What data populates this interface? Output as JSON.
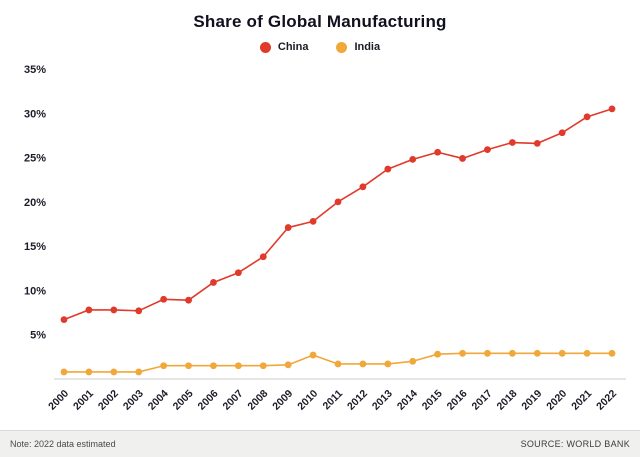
{
  "title": "Share of Global Manufacturing",
  "footer": {
    "note": "Note: 2022 data estimated",
    "source": "SOURCE: WORLD BANK"
  },
  "colors": {
    "china": "#e03a2b",
    "india": "#f0a83a",
    "axis_text": "#1c1c28",
    "baseline": "#cccccc"
  },
  "chart_data": {
    "type": "line",
    "title": "Share of Global Manufacturing",
    "xlabel": "",
    "ylabel": "",
    "x": [
      2000,
      2001,
      2002,
      2003,
      2004,
      2005,
      2006,
      2007,
      2008,
      2009,
      2010,
      2011,
      2012,
      2013,
      2014,
      2015,
      2016,
      2017,
      2018,
      2019,
      2020,
      2021,
      2022
    ],
    "series": [
      {
        "name": "China",
        "color": "#e03a2b",
        "values": [
          6.7,
          7.8,
          7.8,
          7.7,
          9.0,
          8.9,
          10.9,
          12.0,
          13.8,
          17.1,
          17.8,
          20.0,
          21.7,
          23.7,
          24.8,
          25.6,
          24.9,
          25.9,
          26.7,
          26.6,
          27.8,
          29.6,
          30.5
        ]
      },
      {
        "name": "India",
        "color": "#f0a83a",
        "values": [
          0.8,
          0.8,
          0.8,
          0.8,
          1.5,
          1.5,
          1.5,
          1.5,
          1.5,
          1.6,
          2.7,
          1.7,
          1.7,
          1.7,
          2.0,
          2.8,
          2.9,
          2.9,
          2.9,
          2.9,
          2.9,
          2.9,
          2.9
        ]
      }
    ],
    "ylim": [
      0,
      35
    ],
    "yticks": [
      5,
      10,
      15,
      20,
      25,
      30,
      35
    ],
    "ytick_suffix": "%",
    "grid": false,
    "legend_position": "top-center",
    "marker": "circle"
  }
}
